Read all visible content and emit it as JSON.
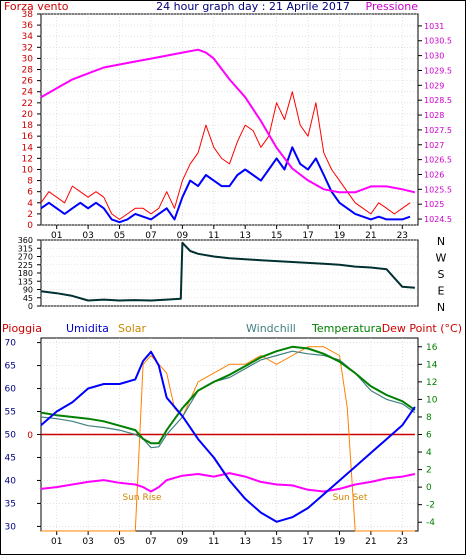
{
  "chart_data": [
    {
      "type": "line",
      "title": "24 hour graph day : 21 Aprile 2017",
      "ylabel_left": "Forza vento",
      "ylabel_right": "Pressione",
      "xlim": [
        0,
        24
      ],
      "ylim_left": [
        0,
        38
      ],
      "ylim_right": [
        1024.3,
        1031.4
      ],
      "x_ticks": [
        "01",
        "03",
        "05",
        "07",
        "09",
        "11",
        "13",
        "15",
        "17",
        "19",
        "21",
        "23"
      ],
      "y_ticks_left": [
        "0",
        "2",
        "4",
        "6",
        "8",
        "10",
        "12",
        "14",
        "16",
        "18",
        "20",
        "22",
        "24",
        "26",
        "28",
        "30",
        "32",
        "34",
        "36",
        "38"
      ],
      "y_ticks_right": [
        "1024.5",
        "1025",
        "1025.5",
        "1026",
        "1026.5",
        "1027",
        "1027.5",
        "1028",
        "1028.5",
        "1029",
        "1029.5",
        "1030",
        "1030.5",
        "1031"
      ],
      "grid": true,
      "colors": {
        "gust": "#ff0000",
        "wind": "#0000ff",
        "pressure": "#ff00ff",
        "left_axis": "#cc0000",
        "right_axis": "#cc00cc"
      },
      "series": [
        {
          "key": "gust",
          "x": [
            0,
            0.5,
            1,
            1.5,
            2,
            2.5,
            3,
            3.5,
            4,
            4.5,
            5,
            5.5,
            6,
            6.5,
            7,
            7.5,
            8,
            8.5,
            9,
            9.5,
            10,
            10.5,
            11,
            11.5,
            12,
            12.5,
            13,
            13.5,
            14,
            14.5,
            15,
            15.5,
            16,
            16.5,
            17,
            17.5,
            18,
            18.5,
            19,
            19.5,
            20,
            20.5,
            21,
            21.5,
            22,
            22.5,
            23,
            23.5
          ],
          "y": [
            4,
            6,
            5,
            4,
            7,
            6,
            5,
            6,
            5,
            2,
            1,
            2,
            3,
            3,
            2,
            3,
            6,
            3,
            8,
            11,
            13,
            18,
            14,
            12,
            11,
            15,
            18,
            17,
            14,
            16,
            22,
            19,
            24,
            18,
            16,
            22,
            13,
            10,
            8,
            6,
            4,
            3,
            2,
            4,
            3,
            2,
            3,
            4
          ]
        },
        {
          "key": "wind",
          "x": [
            0,
            0.5,
            1,
            1.5,
            2,
            2.5,
            3,
            3.5,
            4,
            4.5,
            5,
            5.5,
            6,
            6.5,
            7,
            7.5,
            8,
            8.5,
            9,
            9.5,
            10,
            10.5,
            11,
            11.5,
            12,
            12.5,
            13,
            13.5,
            14,
            14.5,
            15,
            15.5,
            16,
            16.5,
            17,
            17.5,
            18,
            18.5,
            19,
            19.5,
            20,
            20.5,
            21,
            21.5,
            22,
            22.5,
            23,
            23.5
          ],
          "y": [
            3,
            4,
            3,
            2,
            3,
            4,
            3,
            4,
            3,
            1,
            0.5,
            1,
            2,
            1.5,
            1,
            2,
            3,
            1,
            5,
            8,
            7,
            9,
            8,
            7,
            7,
            9,
            10,
            9,
            8,
            10,
            12,
            10,
            14,
            11,
            10,
            12,
            9,
            6,
            4,
            3,
            2,
            1.5,
            1,
            1.5,
            1,
            1,
            1,
            1.5
          ]
        },
        {
          "key": "pressure",
          "x": [
            0,
            1,
            2,
            3,
            4,
            5,
            6,
            7,
            8,
            9,
            10,
            10.5,
            11,
            12,
            13,
            14,
            15,
            16,
            17,
            18,
            19,
            20,
            21,
            22,
            23,
            23.8
          ],
          "y": [
            1028.6,
            1028.9,
            1029.2,
            1029.4,
            1029.6,
            1029.7,
            1029.8,
            1029.9,
            1030.0,
            1030.1,
            1030.2,
            1030.1,
            1029.9,
            1029.2,
            1028.6,
            1027.8,
            1026.9,
            1026.2,
            1025.8,
            1025.5,
            1025.4,
            1025.4,
            1025.6,
            1025.6,
            1025.5,
            1025.4
          ]
        }
      ]
    },
    {
      "type": "line",
      "xlim": [
        0,
        24
      ],
      "ylim": [
        0,
        360
      ],
      "y_ticks": [
        "0",
        "45",
        "90",
        "135",
        "180",
        "225",
        "270",
        "315",
        "360"
      ],
      "compass_labels": [
        "N",
        "W",
        "S",
        "E",
        "N"
      ],
      "grid": true,
      "colors": {
        "direction": "#003030",
        "axis": "#000000"
      },
      "series": [
        {
          "key": "direction",
          "x": [
            0,
            1,
            2,
            3,
            4,
            5,
            6,
            7,
            8,
            8.9,
            9,
            9.5,
            10,
            11,
            12,
            13,
            14,
            15,
            16,
            17,
            18,
            19,
            20,
            21,
            22,
            23,
            23.8
          ],
          "y": [
            80,
            70,
            55,
            30,
            35,
            30,
            32,
            30,
            35,
            40,
            345,
            300,
            285,
            270,
            260,
            255,
            250,
            245,
            240,
            235,
            230,
            225,
            215,
            210,
            200,
            105,
            100
          ]
        }
      ]
    },
    {
      "type": "line",
      "ylabel_left": "Pioggia",
      "legend": [
        "Umidita",
        "Solar",
        "Windchill",
        "Temperatura",
        "Dew Point (°C)"
      ],
      "xlim": [
        0,
        24
      ],
      "ylim_left": [
        29,
        71
      ],
      "ylim_right": [
        -5,
        17
      ],
      "x_ticks": [
        "01",
        "03",
        "05",
        "07",
        "09",
        "11",
        "13",
        "15",
        "17",
        "19",
        "21",
        "23"
      ],
      "y_ticks_left": [
        "30",
        "35",
        "40",
        "45",
        "50",
        "55",
        "60",
        "65",
        "70"
      ],
      "y_ticks_right": [
        "-4",
        "-2",
        "0",
        "2",
        "4",
        "6",
        "8",
        "10",
        "12",
        "14",
        "16"
      ],
      "rain_marker": "0",
      "annotations": [
        "Sun Rise",
        "Sun Set"
      ],
      "grid": true,
      "colors": {
        "rain": "#cc0000",
        "humidity": "#0000ff",
        "solar": "#ff8000",
        "windchill": "#408080",
        "temperature": "#008000",
        "dewpoint": "#ff00ff",
        "left_axis": "#cc0000",
        "right_axis": "#008000"
      },
      "series": [
        {
          "key": "humidity",
          "x": [
            0,
            1,
            2,
            3,
            4,
            5,
            6,
            6.5,
            7,
            7.5,
            8,
            9,
            10,
            11,
            12,
            13,
            14,
            15,
            16,
            17,
            18,
            19,
            20,
            21,
            22,
            23,
            23.8
          ],
          "y": [
            52,
            55,
            57,
            60,
            61,
            61,
            62,
            66,
            68,
            65,
            58,
            54,
            49,
            45,
            40,
            36,
            33,
            31,
            32,
            34,
            37,
            40,
            43,
            46,
            49,
            52,
            56
          ]
        },
        {
          "key": "solar",
          "x": [
            0,
            1,
            2,
            3,
            4,
            5,
            6,
            6.5,
            7,
            7.5,
            8,
            8.5,
            9,
            10,
            11,
            12,
            13,
            14,
            15,
            16,
            17,
            18,
            19,
            19.5,
            20,
            21,
            22,
            23,
            23.8
          ],
          "y": [
            -5,
            -5,
            -5,
            -5,
            -5,
            -5,
            -5,
            14,
            15,
            14,
            13,
            9,
            8,
            12,
            13,
            14,
            14,
            15,
            14,
            15,
            16,
            16,
            15,
            9,
            -5,
            -5,
            -5,
            -5,
            -5
          ]
        },
        {
          "key": "windchill",
          "x": [
            0,
            1,
            2,
            3,
            4,
            5,
            6,
            6.5,
            7,
            7.5,
            8,
            9,
            10,
            11,
            12,
            13,
            14,
            15,
            16,
            17,
            18,
            19,
            20,
            21,
            22,
            23,
            23.8
          ],
          "y": [
            8,
            7.8,
            7.5,
            7,
            6.8,
            6.5,
            6,
            5.5,
            4.5,
            4.6,
            6,
            8,
            11,
            12,
            12.5,
            13.5,
            14.5,
            15,
            15.5,
            15.2,
            15,
            14.5,
            13,
            11,
            10,
            9.5,
            8.5
          ]
        },
        {
          "key": "temperature",
          "x": [
            0,
            1,
            2,
            3,
            4,
            5,
            6,
            6.5,
            7,
            7.5,
            8,
            9,
            10,
            11,
            12,
            13,
            14,
            15,
            16,
            17,
            18,
            19,
            20,
            21,
            22,
            23,
            23.8
          ],
          "y": [
            8.5,
            8.2,
            8,
            7.8,
            7.5,
            7,
            6.5,
            5.5,
            5,
            5,
            6.5,
            9,
            11,
            12,
            12.8,
            13.8,
            14.8,
            15.5,
            16,
            15.8,
            15.2,
            14.3,
            13,
            11.5,
            10.5,
            9.8,
            8.8
          ]
        },
        {
          "key": "dewpoint",
          "x": [
            0,
            1,
            2,
            3,
            4,
            5,
            6,
            6.5,
            7,
            7.5,
            8,
            9,
            10,
            11,
            12,
            13,
            14,
            15,
            16,
            17,
            18,
            19,
            20,
            21,
            22,
            23,
            23.8
          ],
          "y": [
            -0.2,
            0,
            0.3,
            0.6,
            0.8,
            0.5,
            0.3,
            0,
            -0.5,
            0,
            0.8,
            1.3,
            1.5,
            1.2,
            1.6,
            1.2,
            0.6,
            0.3,
            0.2,
            -0.3,
            -0.5,
            -0.2,
            0.3,
            0.6,
            1,
            1.2,
            1.5
          ]
        },
        {
          "key": "rain",
          "x": [
            0,
            23.8
          ],
          "y": [
            50,
            50
          ]
        }
      ]
    }
  ]
}
